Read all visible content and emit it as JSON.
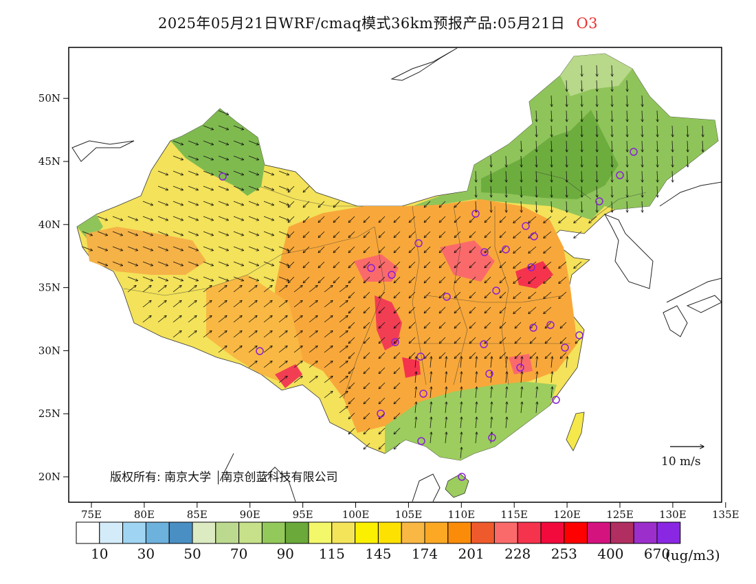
{
  "header": {
    "title": "2025年05月21日WRF/cmaq模式36km预报产品:05月21日",
    "species": "O3",
    "species_color": "#e8312f"
  },
  "map": {
    "lon_ticks": [
      "75E",
      "80E",
      "85E",
      "90E",
      "95E",
      "100E",
      "105E",
      "110E",
      "115E",
      "120E",
      "125E",
      "130E",
      "135E"
    ],
    "lat_ticks": [
      "20N",
      "25N",
      "30N",
      "35N",
      "40N",
      "45N",
      "50N"
    ],
    "reference_vector": "10 m/s",
    "copyright": "版权所有: 南京大学",
    "copyright_org": "南京创蓝科技有限公司",
    "monitoring_site_color": "#8a1fd6"
  },
  "legend": {
    "unit": "(ug/m3)",
    "labels": [
      "10",
      "30",
      "50",
      "70",
      "90",
      "115",
      "145",
      "174",
      "201",
      "228",
      "253",
      "400",
      "670"
    ],
    "colors": [
      "#ffffff",
      "#d4ecfa",
      "#9fd5f2",
      "#6db1dd",
      "#4a8fc4",
      "#dcebc2",
      "#bcda8f",
      "#c6e18a",
      "#93c95a",
      "#6aa93a",
      "#f3f76a",
      "#f4e45a",
      "#fbf000",
      "#fde100",
      "#f8b843",
      "#fca825",
      "#fb8c09",
      "#ef5a2c",
      "#fa6a6a",
      "#f5334d",
      "#f20a3c",
      "#fe0000",
      "#d4137e",
      "#b02f60",
      "#9c2fcc",
      "#8a27e3"
    ]
  }
}
